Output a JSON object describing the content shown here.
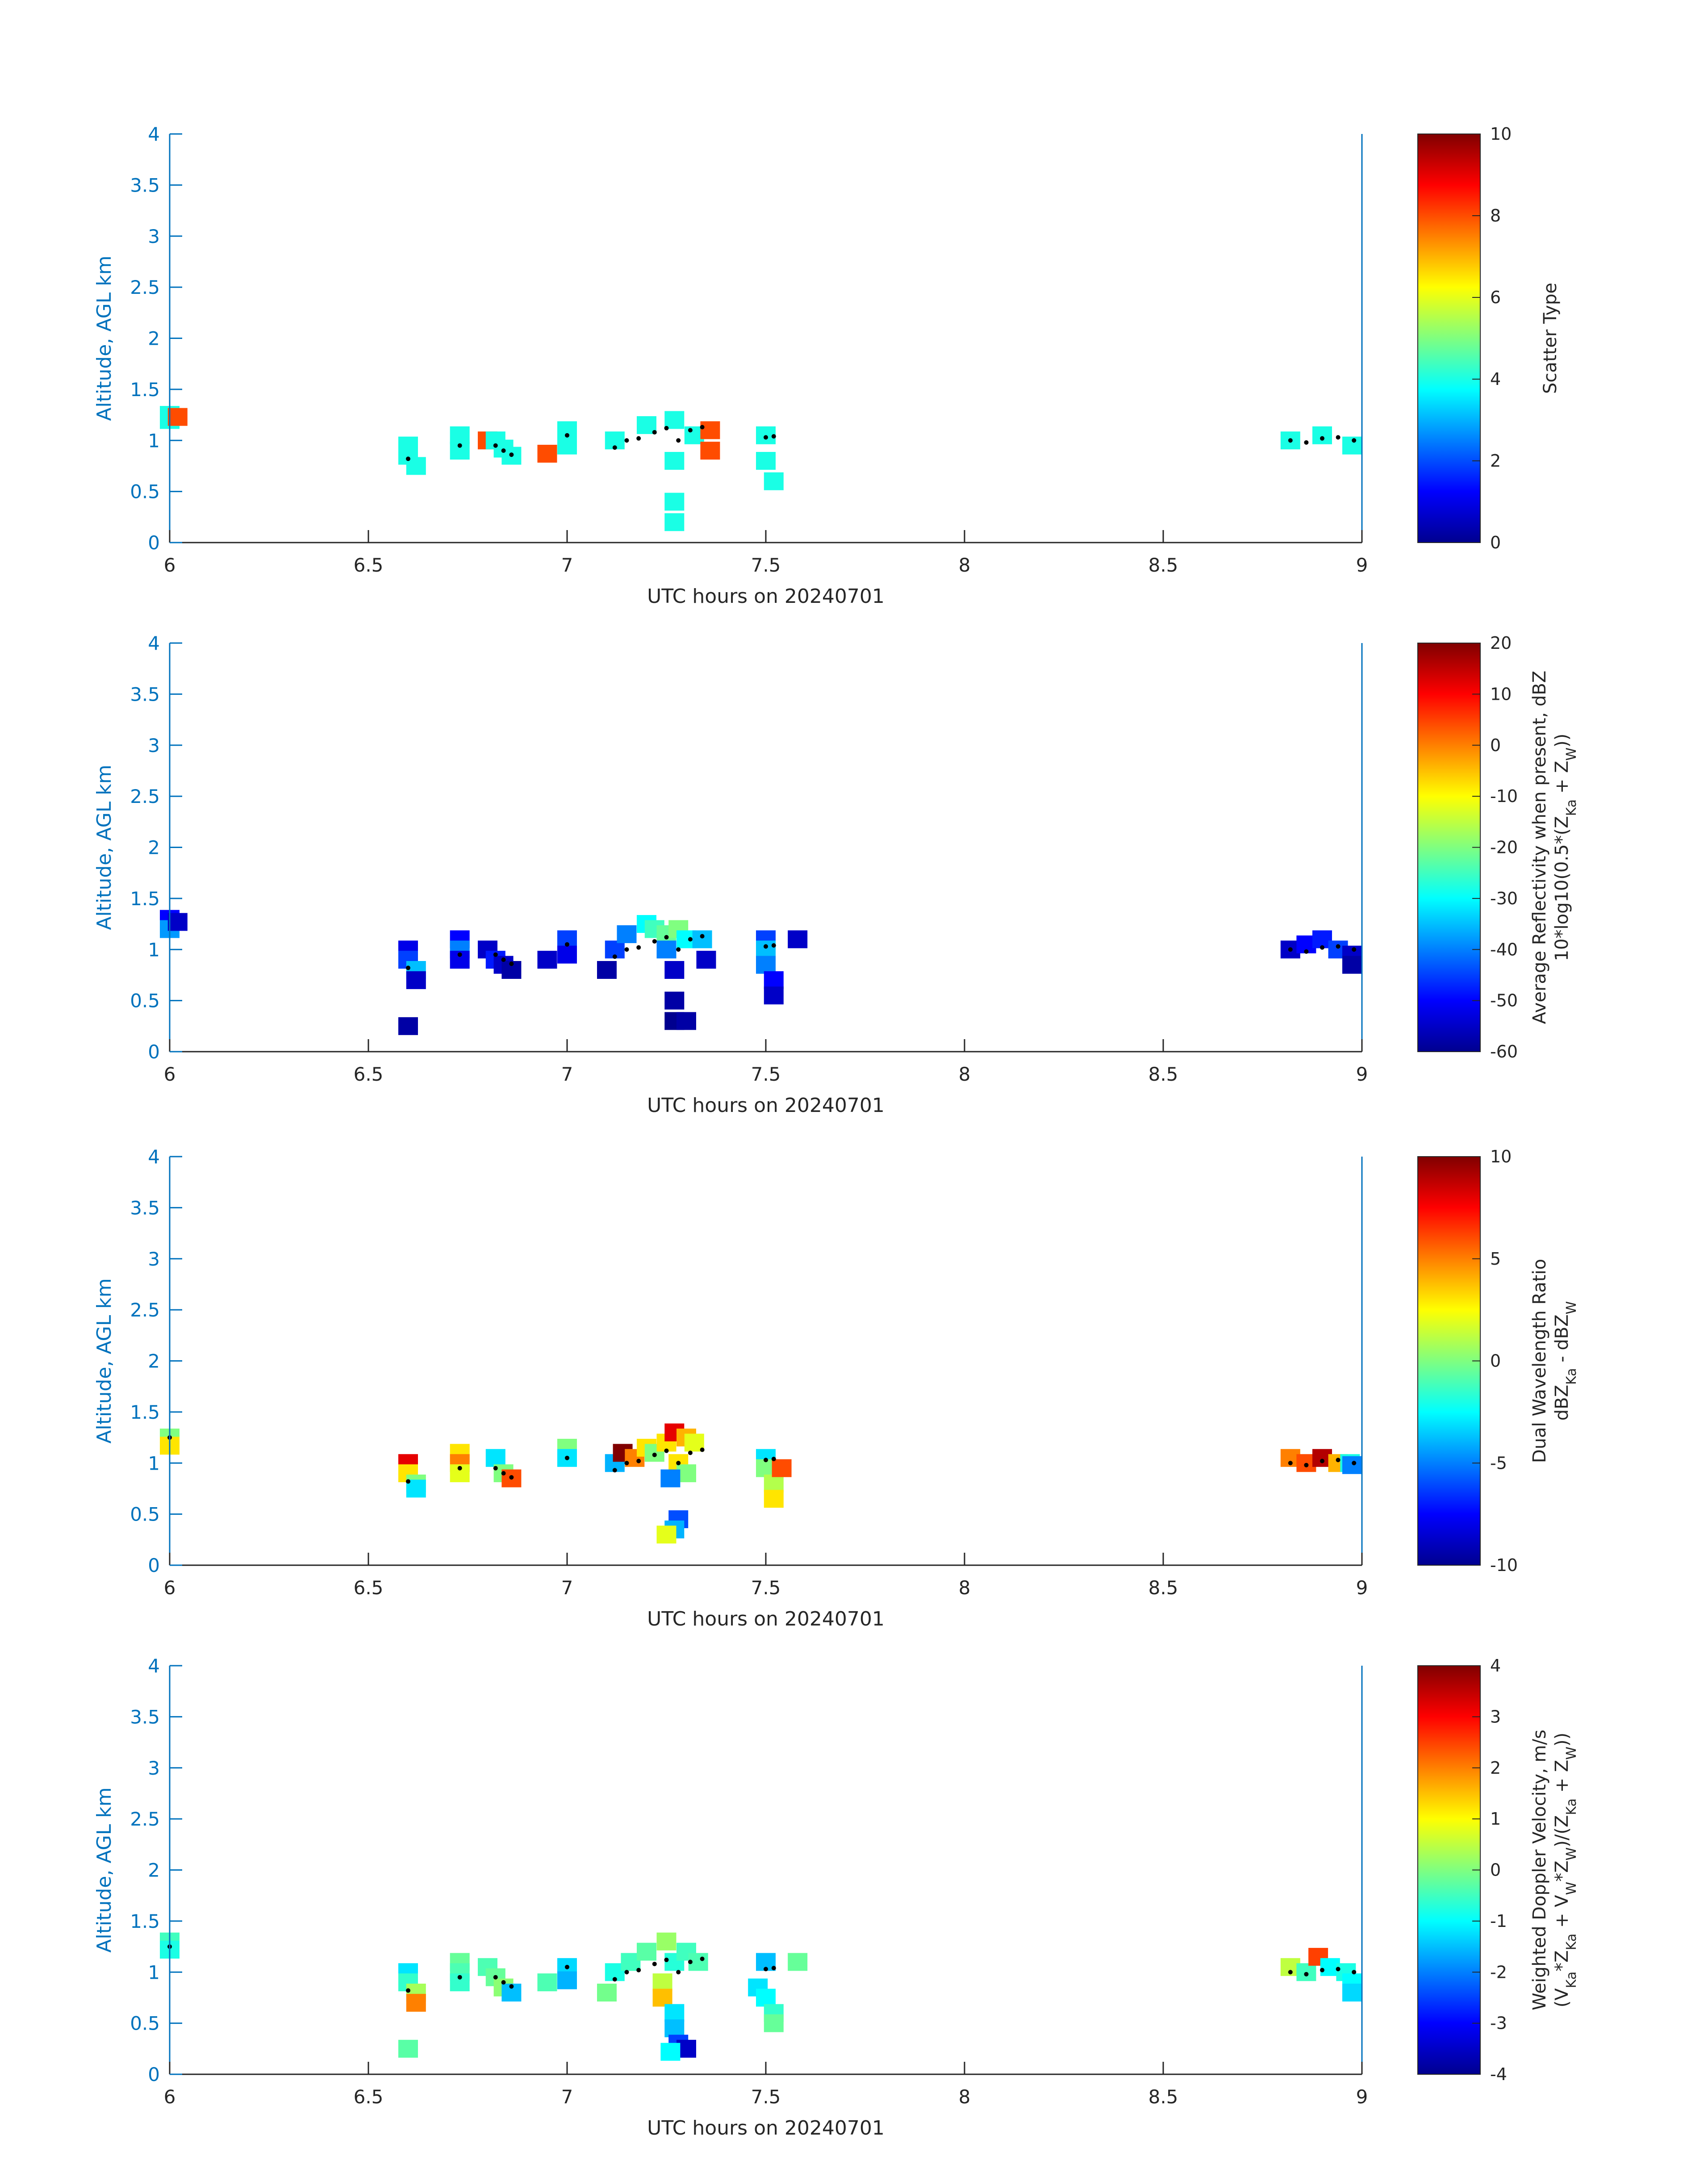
{
  "chart_data": [
    {
      "type": "heatmap",
      "title": "",
      "xlabel": "UTC hours on 20240701",
      "ylabel": "Altitude, AGL km",
      "xlim": [
        6,
        9
      ],
      "ylim": [
        0,
        4
      ],
      "xticks": [
        6,
        6.5,
        7,
        7.5,
        8,
        8.5,
        9
      ],
      "yticks": [
        0,
        0.5,
        1,
        1.5,
        2,
        2.5,
        3,
        3.5,
        4
      ],
      "colorbar": {
        "label": [
          "Scatter Type"
        ],
        "range": [
          0,
          10
        ],
        "ticks": [
          0,
          2,
          4,
          6,
          8,
          10
        ]
      },
      "cells": [
        [
          6.0,
          1.25,
          4
        ],
        [
          6.0,
          1.2,
          4
        ],
        [
          6.02,
          1.23,
          8
        ],
        [
          6.6,
          0.95,
          4
        ],
        [
          6.6,
          0.85,
          4
        ],
        [
          6.62,
          0.75,
          4
        ],
        [
          6.73,
          1.05,
          4
        ],
        [
          6.73,
          0.9,
          4
        ],
        [
          6.8,
          1.0,
          8
        ],
        [
          6.82,
          1.0,
          4
        ],
        [
          6.84,
          0.92,
          4
        ],
        [
          6.86,
          0.85,
          4
        ],
        [
          6.95,
          0.87,
          8
        ],
        [
          7.0,
          1.1,
          4
        ],
        [
          7.0,
          0.95,
          4
        ],
        [
          7.12,
          1.0,
          4
        ],
        [
          7.2,
          1.15,
          4
        ],
        [
          7.27,
          1.2,
          4
        ],
        [
          7.27,
          0.8,
          4
        ],
        [
          7.27,
          0.4,
          4
        ],
        [
          7.27,
          0.2,
          4
        ],
        [
          7.32,
          1.05,
          4
        ],
        [
          7.36,
          1.1,
          8
        ],
        [
          7.36,
          0.9,
          8
        ],
        [
          7.5,
          1.05,
          4
        ],
        [
          7.5,
          0.8,
          4
        ],
        [
          7.52,
          0.6,
          4
        ],
        [
          8.82,
          1.0,
          4
        ],
        [
          8.9,
          1.05,
          4
        ],
        [
          9.0,
          0.95,
          4
        ]
      ],
      "markers": [
        [
          6.6,
          0.82
        ],
        [
          6.73,
          0.95
        ],
        [
          6.82,
          0.95
        ],
        [
          6.84,
          0.9
        ],
        [
          6.86,
          0.86
        ],
        [
          7.0,
          1.05
        ],
        [
          7.12,
          0.93
        ],
        [
          7.15,
          1.0
        ],
        [
          7.18,
          1.02
        ],
        [
          7.22,
          1.08
        ],
        [
          7.25,
          1.12
        ],
        [
          7.28,
          1.0
        ],
        [
          7.31,
          1.1
        ],
        [
          7.34,
          1.13
        ],
        [
          7.5,
          1.03
        ],
        [
          7.52,
          1.04
        ],
        [
          8.82,
          1.0
        ],
        [
          8.86,
          0.98
        ],
        [
          8.9,
          1.02
        ],
        [
          8.94,
          1.03
        ],
        [
          8.98,
          1.0
        ]
      ]
    },
    {
      "type": "heatmap",
      "title": "",
      "xlabel": "UTC hours on 20240701",
      "ylabel": "Altitude, AGL km",
      "xlim": [
        6,
        9
      ],
      "ylim": [
        0,
        4
      ],
      "xticks": [
        6,
        6.5,
        7,
        7.5,
        8,
        8.5,
        9
      ],
      "yticks": [
        0,
        0.5,
        1,
        1.5,
        2,
        2.5,
        3,
        3.5,
        4
      ],
      "colorbar": {
        "label": [
          "Average Reflectivity when present, dBZ",
          "10*log10(0.5*(Z",
          "Ka",
          " + Z",
          "W",
          "))"
        ],
        "range": [
          -60,
          20
        ],
        "ticks": [
          -60,
          -50,
          -40,
          -30,
          -20,
          -10,
          0,
          10,
          20
        ]
      },
      "cells": [
        [
          6.0,
          1.3,
          -50
        ],
        [
          6.0,
          1.2,
          -38
        ],
        [
          6.02,
          1.27,
          -55
        ],
        [
          6.6,
          1.0,
          -52
        ],
        [
          6.6,
          0.9,
          -45
        ],
        [
          6.62,
          0.8,
          -35
        ],
        [
          6.62,
          0.7,
          -55
        ],
        [
          6.6,
          0.25,
          -58
        ],
        [
          6.73,
          1.1,
          -50
        ],
        [
          6.73,
          1.0,
          -40
        ],
        [
          6.73,
          0.9,
          -52
        ],
        [
          6.8,
          1.0,
          -55
        ],
        [
          6.82,
          0.9,
          -48
        ],
        [
          6.84,
          0.85,
          -55
        ],
        [
          6.86,
          0.8,
          -58
        ],
        [
          6.95,
          0.9,
          -55
        ],
        [
          7.0,
          1.1,
          -45
        ],
        [
          7.0,
          0.95,
          -52
        ],
        [
          7.1,
          0.8,
          -58
        ],
        [
          7.12,
          1.0,
          -45
        ],
        [
          7.15,
          1.15,
          -40
        ],
        [
          7.2,
          1.25,
          -30
        ],
        [
          7.22,
          1.2,
          -25
        ],
        [
          7.25,
          1.15,
          -22
        ],
        [
          7.28,
          1.2,
          -20
        ],
        [
          7.3,
          1.1,
          -30
        ],
        [
          7.25,
          1.0,
          -40
        ],
        [
          7.27,
          0.8,
          -55
        ],
        [
          7.27,
          0.5,
          -58
        ],
        [
          7.27,
          0.3,
          -60
        ],
        [
          7.3,
          0.3,
          -58
        ],
        [
          7.34,
          1.1,
          -35
        ],
        [
          7.35,
          0.9,
          -55
        ],
        [
          7.5,
          1.1,
          -45
        ],
        [
          7.5,
          1.0,
          -35
        ],
        [
          7.5,
          0.85,
          -40
        ],
        [
          7.52,
          0.7,
          -50
        ],
        [
          7.52,
          0.55,
          -55
        ],
        [
          7.58,
          1.1,
          -55
        ],
        [
          8.82,
          1.0,
          -55
        ],
        [
          8.86,
          1.05,
          -50
        ],
        [
          8.9,
          1.1,
          -48
        ],
        [
          8.94,
          1.0,
          -45
        ],
        [
          8.98,
          0.95,
          -55
        ],
        [
          9.0,
          0.85,
          -58
        ]
      ],
      "markers": [
        [
          6.6,
          0.82
        ],
        [
          6.73,
          0.95
        ],
        [
          6.82,
          0.95
        ],
        [
          6.84,
          0.9
        ],
        [
          6.86,
          0.86
        ],
        [
          7.0,
          1.05
        ],
        [
          7.12,
          0.93
        ],
        [
          7.15,
          1.0
        ],
        [
          7.18,
          1.02
        ],
        [
          7.22,
          1.08
        ],
        [
          7.25,
          1.12
        ],
        [
          7.28,
          1.0
        ],
        [
          7.31,
          1.1
        ],
        [
          7.34,
          1.13
        ],
        [
          7.5,
          1.03
        ],
        [
          7.52,
          1.04
        ],
        [
          8.82,
          1.0
        ],
        [
          8.86,
          0.98
        ],
        [
          8.9,
          1.02
        ],
        [
          8.94,
          1.03
        ],
        [
          8.98,
          1.0
        ]
      ]
    },
    {
      "type": "heatmap",
      "title": "",
      "xlabel": "UTC hours on 20240701",
      "ylabel": "Altitude, AGL km",
      "xlim": [
        6,
        9
      ],
      "ylim": [
        0,
        4
      ],
      "xticks": [
        6,
        6.5,
        7,
        7.5,
        8,
        8.5,
        9
      ],
      "yticks": [
        0,
        0.5,
        1,
        1.5,
        2,
        2.5,
        3,
        3.5,
        4
      ],
      "colorbar": {
        "label": [
          "Dual Wavelength Ratio",
          "dBZ",
          "Ka",
          " - dBZ",
          "W"
        ],
        "range": [
          -10,
          10
        ],
        "ticks": [
          -10,
          -5,
          0,
          5,
          10
        ]
      },
      "cells": [
        [
          6.0,
          1.25,
          0
        ],
        [
          6.0,
          1.17,
          3
        ],
        [
          6.6,
          1.0,
          8
        ],
        [
          6.6,
          0.9,
          3
        ],
        [
          6.62,
          0.8,
          0
        ],
        [
          6.62,
          0.75,
          -3
        ],
        [
          6.73,
          1.1,
          3
        ],
        [
          6.73,
          1.0,
          5
        ],
        [
          6.73,
          0.9,
          2
        ],
        [
          6.82,
          1.05,
          -3
        ],
        [
          6.84,
          0.9,
          0
        ],
        [
          6.86,
          0.85,
          6
        ],
        [
          7.0,
          1.15,
          0
        ],
        [
          7.0,
          1.05,
          -3
        ],
        [
          7.12,
          1.0,
          -4
        ],
        [
          7.14,
          1.1,
          10
        ],
        [
          7.17,
          1.05,
          5
        ],
        [
          7.2,
          1.15,
          3
        ],
        [
          7.22,
          1.1,
          0
        ],
        [
          7.25,
          1.2,
          3
        ],
        [
          7.27,
          1.3,
          8
        ],
        [
          7.3,
          1.25,
          4
        ],
        [
          7.32,
          1.2,
          2
        ],
        [
          7.28,
          1.0,
          3
        ],
        [
          7.3,
          0.9,
          0
        ],
        [
          7.26,
          0.85,
          -5
        ],
        [
          7.28,
          0.45,
          -6
        ],
        [
          7.27,
          0.35,
          -4
        ],
        [
          7.25,
          0.3,
          2
        ],
        [
          7.5,
          1.05,
          -3
        ],
        [
          7.5,
          0.95,
          0
        ],
        [
          7.52,
          0.8,
          1
        ],
        [
          7.52,
          0.65,
          3
        ],
        [
          7.54,
          0.95,
          6
        ],
        [
          8.82,
          1.05,
          5
        ],
        [
          8.86,
          1.0,
          6
        ],
        [
          8.9,
          1.05,
          9
        ],
        [
          8.94,
          1.0,
          4
        ],
        [
          8.97,
          1.0,
          -2
        ],
        [
          9.0,
          0.98,
          -5
        ]
      ],
      "markers": [
        [
          6.0,
          1.25
        ],
        [
          6.6,
          0.82
        ],
        [
          6.73,
          0.95
        ],
        [
          6.82,
          0.95
        ],
        [
          6.84,
          0.9
        ],
        [
          6.86,
          0.86
        ],
        [
          7.0,
          1.05
        ],
        [
          7.12,
          0.93
        ],
        [
          7.15,
          1.0
        ],
        [
          7.18,
          1.02
        ],
        [
          7.22,
          1.08
        ],
        [
          7.25,
          1.12
        ],
        [
          7.28,
          1.0
        ],
        [
          7.31,
          1.1
        ],
        [
          7.34,
          1.13
        ],
        [
          7.5,
          1.03
        ],
        [
          7.52,
          1.04
        ],
        [
          8.82,
          1.0
        ],
        [
          8.86,
          0.98
        ],
        [
          8.9,
          1.02
        ],
        [
          8.94,
          1.03
        ],
        [
          8.98,
          1.0
        ]
      ]
    },
    {
      "type": "heatmap",
      "title": "",
      "xlabel": "UTC hours on 20240701",
      "ylabel": "Altitude, AGL km",
      "xlim": [
        6,
        9
      ],
      "ylim": [
        0,
        4
      ],
      "xticks": [
        6,
        6.5,
        7,
        7.5,
        8,
        8.5,
        9
      ],
      "yticks": [
        0,
        0.5,
        1,
        1.5,
        2,
        2.5,
        3,
        3.5,
        4
      ],
      "colorbar": {
        "label": [
          "Weighted Doppler Velocity, m/s",
          "(V",
          "Ka",
          "*Z",
          "Ka",
          " + V",
          "W",
          "*Z",
          "W",
          ")/(Z",
          "Ka",
          " + Z",
          "W",
          "))"
        ],
        "range": [
          -4,
          4
        ],
        "ticks": [
          -4,
          -3,
          -2,
          -1,
          0,
          1,
          2,
          3,
          4
        ]
      },
      "cells": [
        [
          6.0,
          1.3,
          -0.5
        ],
        [
          6.0,
          1.22,
          -0.8
        ],
        [
          6.6,
          1.0,
          -1.2
        ],
        [
          6.6,
          0.9,
          -0.6
        ],
        [
          6.62,
          0.8,
          0.3
        ],
        [
          6.62,
          0.7,
          2.0
        ],
        [
          6.6,
          0.25,
          -0.3
        ],
        [
          6.73,
          1.1,
          -0.2
        ],
        [
          6.73,
          1.0,
          -0.4
        ],
        [
          6.73,
          0.9,
          -0.6
        ],
        [
          6.8,
          1.05,
          -0.4
        ],
        [
          6.82,
          0.95,
          -0.2
        ],
        [
          6.84,
          0.85,
          0.1
        ],
        [
          6.86,
          0.8,
          -1.5
        ],
        [
          6.95,
          0.9,
          -0.4
        ],
        [
          7.0,
          1.05,
          -1.3
        ],
        [
          7.0,
          0.92,
          -1.6
        ],
        [
          7.1,
          0.8,
          -0.1
        ],
        [
          7.12,
          1.0,
          -0.8
        ],
        [
          7.16,
          1.1,
          -0.5
        ],
        [
          7.2,
          1.2,
          -0.3
        ],
        [
          7.25,
          1.3,
          0.2
        ],
        [
          7.27,
          1.1,
          -0.7
        ],
        [
          7.3,
          1.2,
          -0.5
        ],
        [
          7.33,
          1.1,
          -0.4
        ],
        [
          7.24,
          0.9,
          0.5
        ],
        [
          7.24,
          0.75,
          1.5
        ],
        [
          7.27,
          0.6,
          -1.2
        ],
        [
          7.27,
          0.45,
          -1.5
        ],
        [
          7.28,
          0.3,
          -2.5
        ],
        [
          7.3,
          0.25,
          -3.5
        ],
        [
          7.26,
          0.22,
          -1.0
        ],
        [
          7.5,
          1.1,
          -1.5
        ],
        [
          7.48,
          0.85,
          -1.2
        ],
        [
          7.5,
          0.75,
          -1.0
        ],
        [
          7.52,
          0.6,
          -0.6
        ],
        [
          7.52,
          0.5,
          -0.2
        ],
        [
          7.58,
          1.1,
          -0.2
        ],
        [
          8.82,
          1.05,
          0.5
        ],
        [
          8.86,
          1.0,
          -0.5
        ],
        [
          8.89,
          1.15,
          2.5
        ],
        [
          8.92,
          1.05,
          -1.0
        ],
        [
          8.96,
          1.0,
          -0.8
        ],
        [
          9.0,
          0.9,
          -1.0
        ],
        [
          9.0,
          0.8,
          -1.3
        ]
      ],
      "markers": [
        [
          6.0,
          1.25
        ],
        [
          6.6,
          0.82
        ],
        [
          6.73,
          0.95
        ],
        [
          6.82,
          0.95
        ],
        [
          6.84,
          0.9
        ],
        [
          6.86,
          0.86
        ],
        [
          7.0,
          1.05
        ],
        [
          7.12,
          0.93
        ],
        [
          7.15,
          1.0
        ],
        [
          7.18,
          1.02
        ],
        [
          7.22,
          1.08
        ],
        [
          7.25,
          1.12
        ],
        [
          7.28,
          1.0
        ],
        [
          7.31,
          1.1
        ],
        [
          7.34,
          1.13
        ],
        [
          7.5,
          1.03
        ],
        [
          7.52,
          1.04
        ],
        [
          8.82,
          1.0
        ],
        [
          8.86,
          0.98
        ],
        [
          8.9,
          1.02
        ],
        [
          8.94,
          1.03
        ],
        [
          8.98,
          1.0
        ]
      ]
    }
  ]
}
